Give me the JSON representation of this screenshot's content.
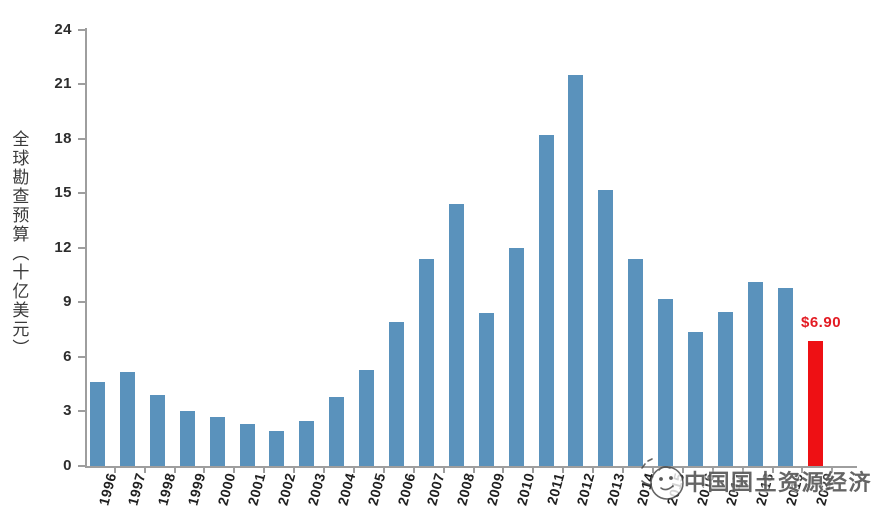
{
  "chart_data": {
    "type": "bar",
    "title": "",
    "ylabel": "全球勘查预算（十亿美元）",
    "xlabel": "",
    "categories": [
      "1996",
      "1997",
      "1998",
      "1999",
      "2000",
      "2001",
      "2002",
      "2003",
      "2004",
      "2005",
      "2006",
      "2007",
      "2008",
      "2009",
      "2010",
      "2011",
      "2012",
      "2013",
      "2014",
      "2015",
      "2016",
      "2017",
      "2018",
      "2019",
      "2020"
    ],
    "values": [
      4.6,
      5.2,
      3.9,
      3.0,
      2.7,
      2.3,
      1.9,
      2.5,
      3.8,
      5.3,
      7.9,
      11.4,
      14.4,
      8.4,
      12.0,
      18.2,
      21.5,
      15.2,
      11.4,
      9.2,
      7.4,
      8.5,
      10.1,
      9.8,
      6.9
    ],
    "yticks": [
      0,
      3,
      6,
      9,
      12,
      15,
      18,
      21,
      24
    ],
    "ylim": [
      0,
      24
    ],
    "grid": false,
    "legend": null,
    "bar_color": "#5a92bc",
    "highlight": {
      "index": 24,
      "color": "#ee1014",
      "label": "$6.90",
      "label_color": "#e31b23"
    }
  },
  "watermark": {
    "text": "中国国土资源经济",
    "logo_icon": "cartoon-mascot-logo-icon"
  }
}
